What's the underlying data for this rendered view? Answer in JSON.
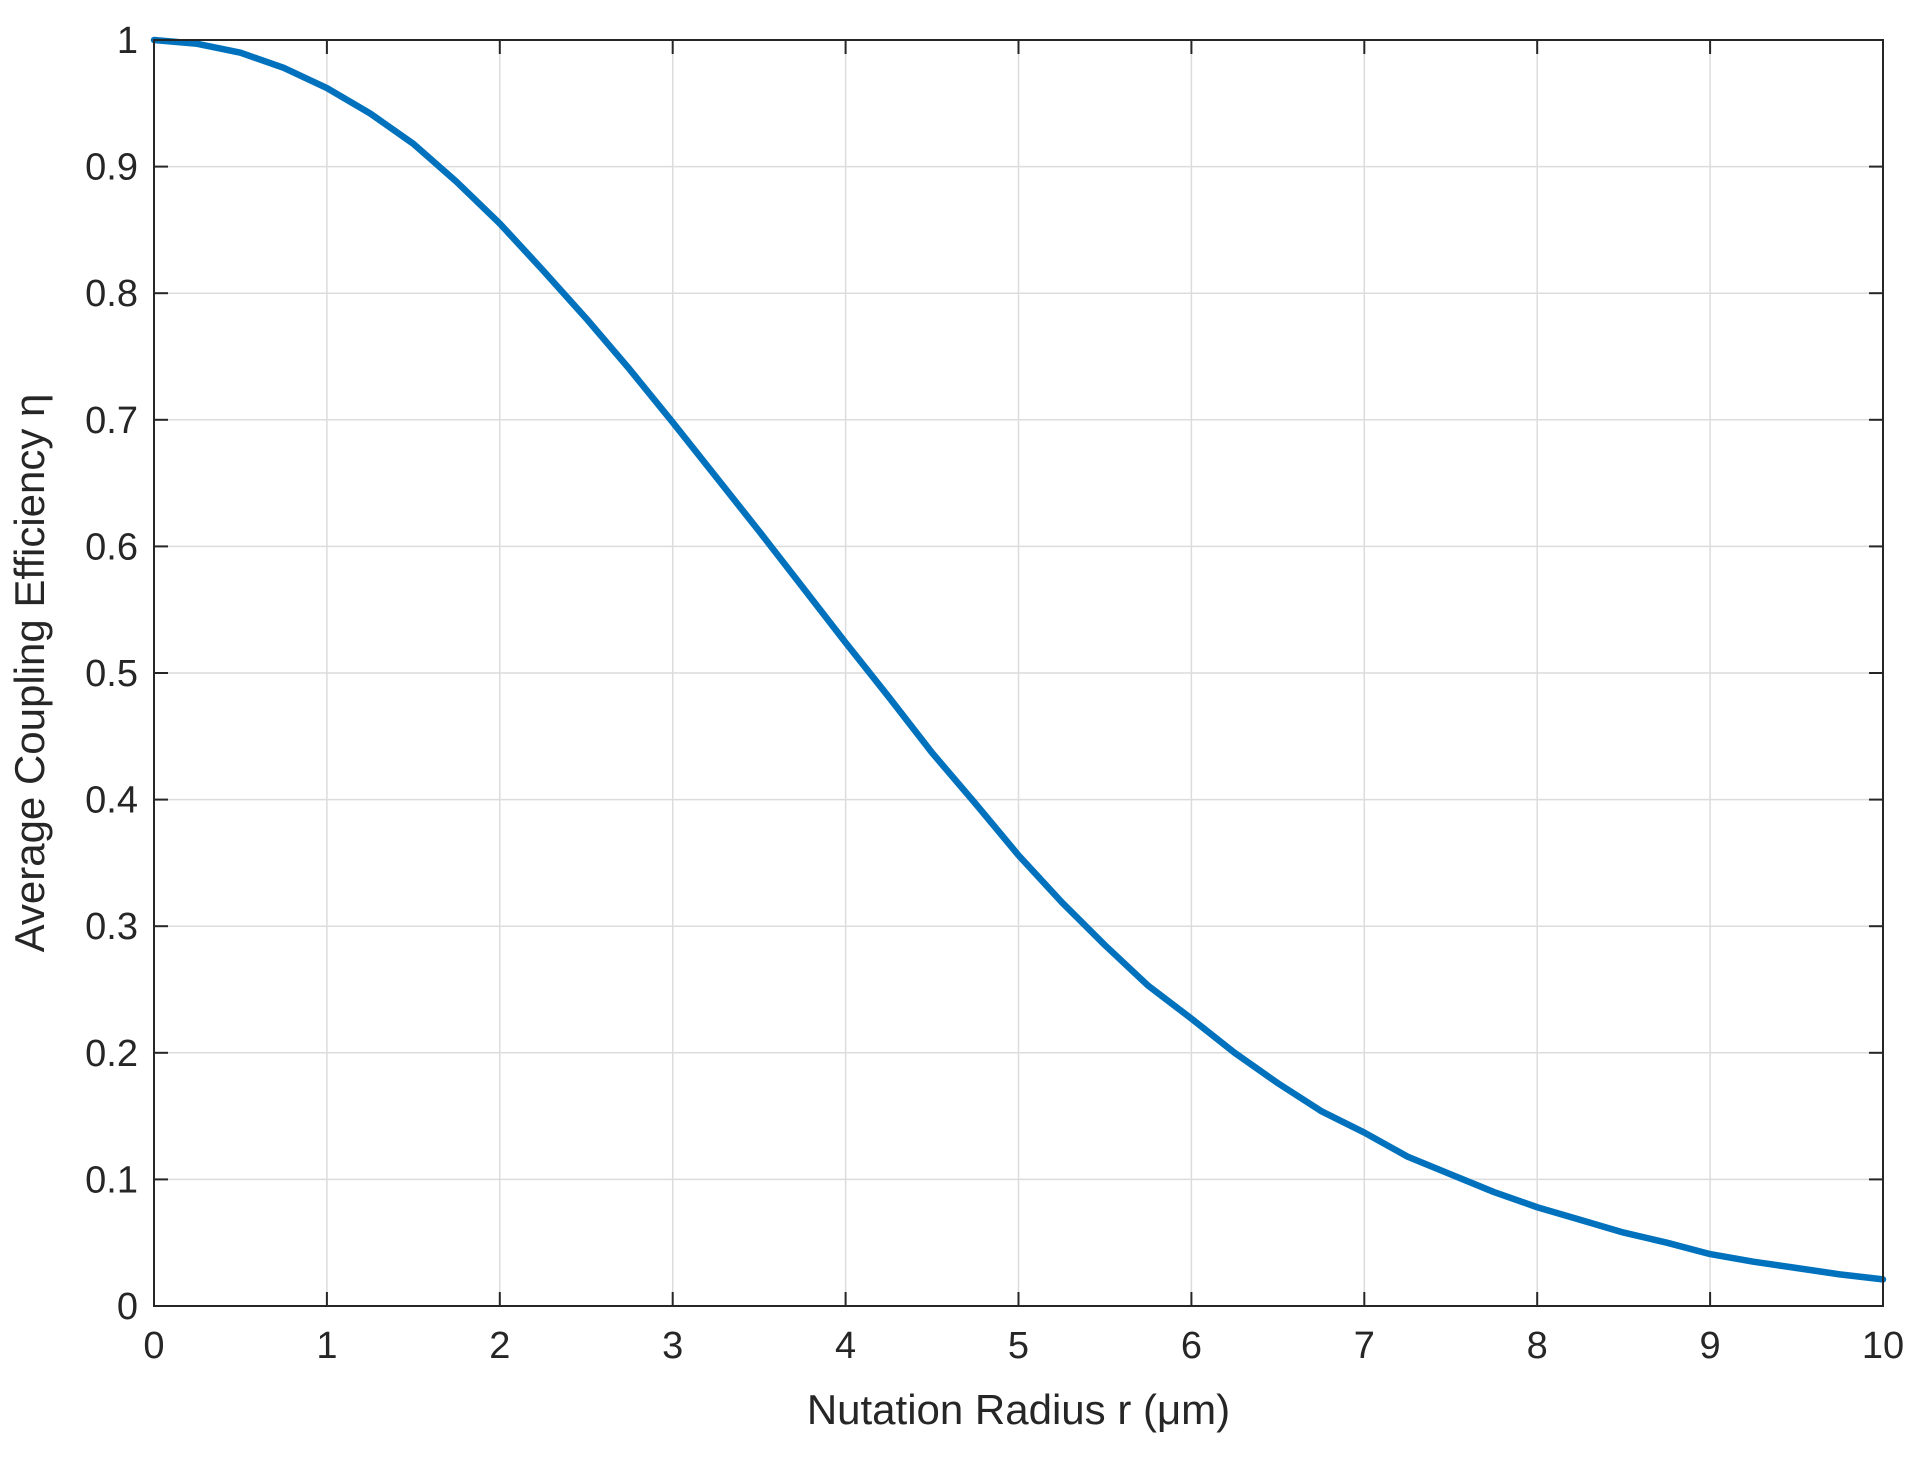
{
  "chart_data": {
    "type": "line",
    "xlabel": "Nutation Radius r (μm)",
    "ylabel": "Average Coupling Efficiency η",
    "xlim": [
      0,
      10
    ],
    "ylim": [
      0,
      1
    ],
    "xticks": [
      0,
      1,
      2,
      3,
      4,
      5,
      6,
      7,
      8,
      9,
      10
    ],
    "yticks": [
      0,
      0.1,
      0.2,
      0.3,
      0.4,
      0.5,
      0.6,
      0.7,
      0.8,
      0.9,
      1
    ],
    "xtick_labels": [
      "0",
      "1",
      "2",
      "3",
      "4",
      "5",
      "6",
      "7",
      "8",
      "9",
      "10"
    ],
    "ytick_labels": [
      "0",
      "0.1",
      "0.2",
      "0.3",
      "0.4",
      "0.5",
      "0.6",
      "0.7",
      "0.8",
      "0.9",
      "1"
    ],
    "grid": true,
    "series": [
      {
        "color": "#0072BD",
        "x": [
          0,
          0.25,
          0.5,
          0.75,
          1,
          1.25,
          1.5,
          1.75,
          2,
          2.25,
          2.5,
          2.75,
          3,
          3.25,
          3.5,
          3.75,
          4,
          4.25,
          4.5,
          4.75,
          5,
          5.25,
          5.5,
          5.75,
          6,
          6.25,
          6.5,
          6.75,
          7,
          7.25,
          7.5,
          7.75,
          8,
          8.25,
          8.5,
          8.75,
          9,
          9.25,
          9.5,
          9.75,
          10
        ],
        "y": [
          1.0,
          0.997,
          0.99,
          0.978,
          0.962,
          0.942,
          0.918,
          0.888,
          0.855,
          0.818,
          0.78,
          0.74,
          0.698,
          0.655,
          0.612,
          0.568,
          0.524,
          0.481,
          0.437,
          0.397,
          0.356,
          0.319,
          0.285,
          0.253,
          0.227,
          0.2,
          0.176,
          0.154,
          0.137,
          0.118,
          0.104,
          0.09,
          0.078,
          0.068,
          0.058,
          0.05,
          0.041,
          0.035,
          0.03,
          0.025,
          0.021
        ]
      }
    ]
  }
}
